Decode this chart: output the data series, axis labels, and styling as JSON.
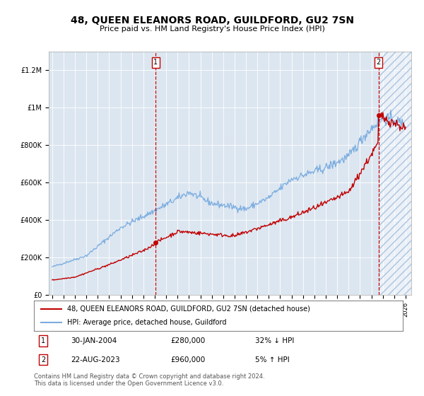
{
  "title": "48, QUEEN ELEANORS ROAD, GUILDFORD, GU2 7SN",
  "subtitle": "Price paid vs. HM Land Registry's House Price Index (HPI)",
  "sale1_date": "30-JAN-2004",
  "sale1_price": 280000,
  "sale1_label": "32% ↓ HPI",
  "sale2_date": "22-AUG-2023",
  "sale2_price": 960000,
  "sale2_label": "5% ↑ HPI",
  "legend_line1": "48, QUEEN ELEANORS ROAD, GUILDFORD, GU2 7SN (detached house)",
  "legend_line2": "HPI: Average price, detached house, Guildford",
  "footer": "Contains HM Land Registry data © Crown copyright and database right 2024.\nThis data is licensed under the Open Government Licence v3.0.",
  "hpi_color": "#7aace0",
  "price_color": "#c00000",
  "bg_color": "#dce6f1",
  "ylim": [
    0,
    1300000
  ],
  "yticks": [
    0,
    200000,
    400000,
    600000,
    800000,
    1000000,
    1200000
  ],
  "sale1_x": 2004.08,
  "sale2_x": 2023.64,
  "xlim_left": 1994.7,
  "xlim_right": 2026.5
}
